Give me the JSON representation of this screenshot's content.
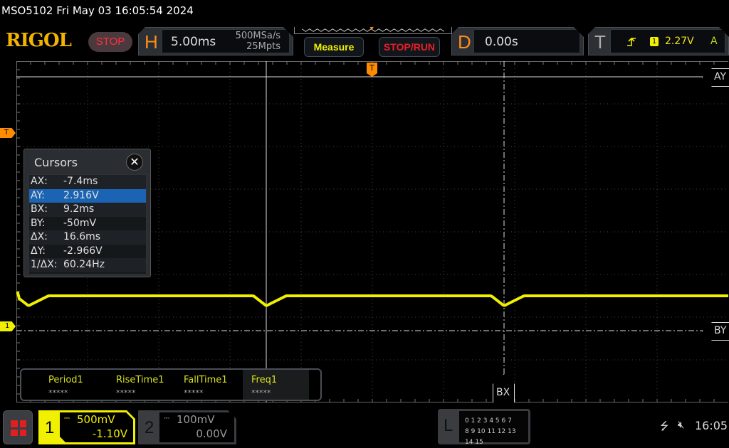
{
  "status_bar": {
    "title": "MSO5102  Fri May 03 16:05:54 2024"
  },
  "header": {
    "brand": "RIGOL",
    "run_state": "STOP",
    "horizontal": {
      "label": "H",
      "timebase": "5.00ms",
      "sample_rate": "500MSa/s",
      "memory_depth": "25Mpts"
    },
    "measure_label": "Measure",
    "stop_run_label": "STOP/RUN",
    "delay": {
      "label": "D",
      "value": "0.00s"
    },
    "trigger": {
      "label": "T",
      "source": "1",
      "level": "2.27V",
      "mode": "A",
      "slope_icon": "rising-edge-icon"
    }
  },
  "markers": {
    "trigger_top": "T",
    "trigger_level": "T",
    "ch1_ground": "1",
    "ay": "AY",
    "by": "BY",
    "bx": "BX"
  },
  "cursors": {
    "title": "Cursors",
    "rows": [
      {
        "key": "AX:",
        "value": "-7.4ms"
      },
      {
        "key": "AY:",
        "value": "2.916V",
        "selected": true
      },
      {
        "key": "BX:",
        "value": "9.2ms"
      },
      {
        "key": "BY:",
        "value": "-50mV"
      },
      {
        "key": "ΔX:",
        "value": "16.6ms"
      },
      {
        "key": "ΔY:",
        "value": "-2.966V"
      },
      {
        "key": "1/ΔX:",
        "value": "60.24Hz"
      }
    ]
  },
  "measurements": [
    {
      "name": "Period1",
      "value": "*****"
    },
    {
      "name": "RiseTime1",
      "value": "*****"
    },
    {
      "name": "FallTime1",
      "value": "*****"
    },
    {
      "name": "Freq1",
      "value": "*****"
    }
  ],
  "channels": [
    {
      "num": "1",
      "scale": "500mV",
      "offset": "-1.10V",
      "active": true,
      "color": "#f0f000"
    },
    {
      "num": "2",
      "scale": "100mV",
      "offset": "0.00V",
      "active": false
    }
  ],
  "logic": {
    "label": "L",
    "row1": "0 1 2 3  4 5 6 7",
    "row2": "8 9 10 11 12 13 14 15"
  },
  "system": {
    "clock": "16:05"
  },
  "colors": {
    "trace": "#f0f000",
    "accent": "#ff8c00"
  }
}
